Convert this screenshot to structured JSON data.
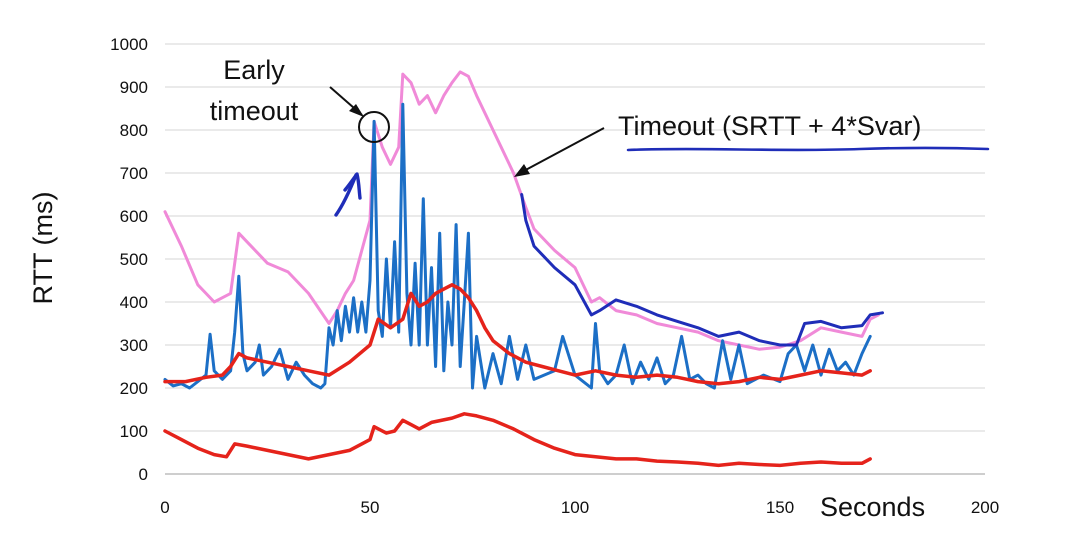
{
  "chart_data": {
    "type": "line",
    "title": "",
    "xlabel": "Seconds",
    "ylabel": "RTT (ms)",
    "xlim": [
      0,
      200
    ],
    "ylim": [
      0,
      1000
    ],
    "x_ticks": [
      0,
      50,
      100,
      150,
      200
    ],
    "y_ticks": [
      0,
      100,
      200,
      300,
      400,
      500,
      600,
      700,
      800,
      900,
      1000
    ],
    "grid": "horizontal",
    "legend": "none",
    "series": [
      {
        "color": "#f08ad8",
        "width": 3,
        "points": [
          [
            0,
            610
          ],
          [
            4,
            530
          ],
          [
            8,
            440
          ],
          [
            10,
            420
          ],
          [
            12,
            400
          ],
          [
            14,
            410
          ],
          [
            16,
            420
          ],
          [
            18,
            560
          ],
          [
            20,
            540
          ],
          [
            25,
            490
          ],
          [
            30,
            470
          ],
          [
            35,
            420
          ],
          [
            40,
            350
          ],
          [
            42,
            380
          ],
          [
            44,
            420
          ],
          [
            46,
            450
          ],
          [
            48,
            520
          ],
          [
            50,
            590
          ],
          [
            51,
            820
          ],
          [
            53,
            760
          ],
          [
            55,
            720
          ],
          [
            57,
            760
          ],
          [
            58,
            930
          ],
          [
            60,
            910
          ],
          [
            62,
            860
          ],
          [
            64,
            880
          ],
          [
            66,
            840
          ],
          [
            68,
            880
          ],
          [
            70,
            910
          ],
          [
            72,
            935
          ],
          [
            74,
            925
          ],
          [
            76,
            880
          ],
          [
            78,
            840
          ],
          [
            80,
            800
          ],
          [
            82,
            760
          ],
          [
            85,
            700
          ],
          [
            88,
            620
          ],
          [
            90,
            570
          ],
          [
            95,
            520
          ],
          [
            100,
            480
          ],
          [
            104,
            400
          ],
          [
            106,
            410
          ],
          [
            110,
            380
          ],
          [
            115,
            370
          ],
          [
            120,
            350
          ],
          [
            125,
            340
          ],
          [
            130,
            330
          ],
          [
            135,
            310
          ],
          [
            140,
            300
          ],
          [
            145,
            290
          ],
          [
            150,
            295
          ],
          [
            155,
            310
          ],
          [
            160,
            340
          ],
          [
            165,
            330
          ],
          [
            170,
            320
          ],
          [
            172,
            360
          ],
          [
            174,
            370
          ]
        ]
      },
      {
        "color": "#1c6fc6",
        "width": 3,
        "points": [
          [
            0,
            220
          ],
          [
            2,
            205
          ],
          [
            4,
            210
          ],
          [
            6,
            200
          ],
          [
            8,
            215
          ],
          [
            10,
            230
          ],
          [
            11,
            325
          ],
          [
            12,
            240
          ],
          [
            14,
            220
          ],
          [
            16,
            240
          ],
          [
            17,
            330
          ],
          [
            18,
            460
          ],
          [
            19,
            280
          ],
          [
            20,
            240
          ],
          [
            22,
            260
          ],
          [
            23,
            300
          ],
          [
            24,
            230
          ],
          [
            26,
            250
          ],
          [
            28,
            290
          ],
          [
            30,
            220
          ],
          [
            32,
            260
          ],
          [
            34,
            230
          ],
          [
            36,
            210
          ],
          [
            38,
            200
          ],
          [
            39,
            210
          ],
          [
            40,
            340
          ],
          [
            41,
            300
          ],
          [
            42,
            380
          ],
          [
            43,
            310
          ],
          [
            44,
            390
          ],
          [
            45,
            330
          ],
          [
            46,
            410
          ],
          [
            47,
            330
          ],
          [
            48,
            400
          ],
          [
            49,
            330
          ],
          [
            50,
            450
          ],
          [
            51,
            820
          ],
          [
            52,
            380
          ],
          [
            53,
            320
          ],
          [
            54,
            500
          ],
          [
            55,
            340
          ],
          [
            56,
            540
          ],
          [
            57,
            330
          ],
          [
            58,
            860
          ],
          [
            59,
            420
          ],
          [
            60,
            300
          ],
          [
            61,
            490
          ],
          [
            62,
            300
          ],
          [
            63,
            640
          ],
          [
            64,
            300
          ],
          [
            65,
            480
          ],
          [
            66,
            250
          ],
          [
            67,
            560
          ],
          [
            68,
            240
          ],
          [
            69,
            400
          ],
          [
            70,
            300
          ],
          [
            71,
            580
          ],
          [
            72,
            250
          ],
          [
            73,
            400
          ],
          [
            74,
            560
          ],
          [
            75,
            200
          ],
          [
            76,
            320
          ],
          [
            78,
            200
          ],
          [
            80,
            280
          ],
          [
            82,
            210
          ],
          [
            84,
            320
          ],
          [
            86,
            220
          ],
          [
            88,
            300
          ],
          [
            90,
            220
          ],
          [
            95,
            240
          ],
          [
            97,
            320
          ],
          [
            100,
            230
          ],
          [
            104,
            200
          ],
          [
            105,
            350
          ],
          [
            106,
            240
          ],
          [
            108,
            210
          ],
          [
            110,
            230
          ],
          [
            112,
            300
          ],
          [
            114,
            210
          ],
          [
            116,
            260
          ],
          [
            118,
            220
          ],
          [
            120,
            270
          ],
          [
            122,
            210
          ],
          [
            124,
            230
          ],
          [
            126,
            320
          ],
          [
            128,
            220
          ],
          [
            130,
            230
          ],
          [
            132,
            210
          ],
          [
            134,
            200
          ],
          [
            136,
            310
          ],
          [
            138,
            220
          ],
          [
            140,
            300
          ],
          [
            142,
            210
          ],
          [
            146,
            230
          ],
          [
            150,
            215
          ],
          [
            152,
            280
          ],
          [
            154,
            300
          ],
          [
            156,
            240
          ],
          [
            158,
            300
          ],
          [
            160,
            230
          ],
          [
            162,
            290
          ],
          [
            164,
            240
          ],
          [
            166,
            260
          ],
          [
            168,
            230
          ],
          [
            170,
            280
          ],
          [
            172,
            320
          ]
        ]
      },
      {
        "color": "#e5231b",
        "width": 3.5,
        "points": [
          [
            0,
            215
          ],
          [
            5,
            215
          ],
          [
            10,
            225
          ],
          [
            14,
            230
          ],
          [
            16,
            250
          ],
          [
            18,
            280
          ],
          [
            20,
            270
          ],
          [
            25,
            260
          ],
          [
            30,
            250
          ],
          [
            35,
            240
          ],
          [
            40,
            230
          ],
          [
            45,
            260
          ],
          [
            50,
            300
          ],
          [
            52,
            360
          ],
          [
            55,
            340
          ],
          [
            58,
            360
          ],
          [
            60,
            420
          ],
          [
            62,
            390
          ],
          [
            64,
            400
          ],
          [
            66,
            420
          ],
          [
            68,
            430
          ],
          [
            70,
            440
          ],
          [
            72,
            430
          ],
          [
            74,
            410
          ],
          [
            76,
            380
          ],
          [
            78,
            340
          ],
          [
            80,
            310
          ],
          [
            84,
            280
          ],
          [
            88,
            260
          ],
          [
            92,
            250
          ],
          [
            96,
            240
          ],
          [
            100,
            230
          ],
          [
            105,
            240
          ],
          [
            110,
            230
          ],
          [
            115,
            225
          ],
          [
            120,
            230
          ],
          [
            125,
            225
          ],
          [
            130,
            215
          ],
          [
            135,
            210
          ],
          [
            140,
            215
          ],
          [
            145,
            225
          ],
          [
            150,
            220
          ],
          [
            155,
            230
          ],
          [
            160,
            240
          ],
          [
            165,
            235
          ],
          [
            170,
            230
          ],
          [
            172,
            240
          ]
        ]
      },
      {
        "color": "#e5231b",
        "width": 3.5,
        "points": [
          [
            0,
            100
          ],
          [
            4,
            80
          ],
          [
            8,
            60
          ],
          [
            12,
            45
          ],
          [
            15,
            40
          ],
          [
            17,
            70
          ],
          [
            20,
            65
          ],
          [
            25,
            55
          ],
          [
            30,
            45
          ],
          [
            35,
            35
          ],
          [
            40,
            45
          ],
          [
            45,
            55
          ],
          [
            48,
            70
          ],
          [
            50,
            80
          ],
          [
            51,
            110
          ],
          [
            54,
            95
          ],
          [
            56,
            100
          ],
          [
            58,
            125
          ],
          [
            60,
            115
          ],
          [
            62,
            105
          ],
          [
            65,
            120
          ],
          [
            70,
            130
          ],
          [
            73,
            140
          ],
          [
            76,
            135
          ],
          [
            80,
            125
          ],
          [
            85,
            105
          ],
          [
            90,
            80
          ],
          [
            95,
            60
          ],
          [
            100,
            45
          ],
          [
            105,
            40
          ],
          [
            110,
            35
          ],
          [
            115,
            35
          ],
          [
            120,
            30
          ],
          [
            125,
            28
          ],
          [
            130,
            25
          ],
          [
            135,
            20
          ],
          [
            140,
            25
          ],
          [
            145,
            22
          ],
          [
            150,
            20
          ],
          [
            155,
            25
          ],
          [
            160,
            28
          ],
          [
            165,
            25
          ],
          [
            170,
            25
          ],
          [
            172,
            35
          ]
        ]
      }
    ],
    "annotations": [
      {
        "text_lines": [
          "Early",
          "timeout"
        ]
      },
      {
        "text": "Timeout (SRTT + 4*Svar)"
      }
    ],
    "overlay": {
      "pen_color": "#1f2db8",
      "timeout_trace": [
        [
          87,
          650
        ],
        [
          88,
          590
        ],
        [
          90,
          530
        ],
        [
          95,
          480
        ],
        [
          100,
          440
        ],
        [
          104,
          370
        ],
        [
          106,
          380
        ],
        [
          110,
          405
        ],
        [
          115,
          390
        ],
        [
          120,
          370
        ],
        [
          125,
          355
        ],
        [
          130,
          340
        ],
        [
          135,
          320
        ],
        [
          140,
          330
        ],
        [
          145,
          310
        ],
        [
          150,
          300
        ],
        [
          154,
          300
        ],
        [
          156,
          350
        ],
        [
          160,
          355
        ],
        [
          165,
          340
        ],
        [
          170,
          345
        ],
        [
          172,
          370
        ],
        [
          175,
          375
        ]
      ]
    }
  }
}
